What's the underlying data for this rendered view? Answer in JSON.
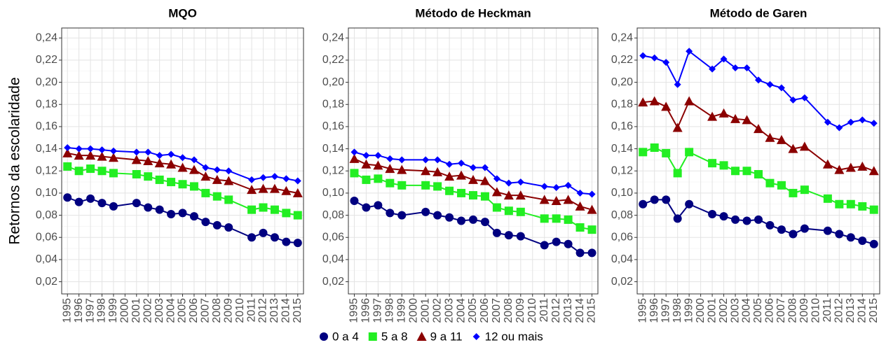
{
  "chart_data": [
    {
      "type": "line",
      "title": "MQO",
      "y_label": "Retornos da escolaridade",
      "x": [
        1995,
        1996,
        1997,
        1998,
        1999,
        2001,
        2002,
        2003,
        2004,
        2005,
        2006,
        2007,
        2008,
        2009,
        2011,
        2012,
        2013,
        2014,
        2015
      ],
      "xlim": [
        1994.5,
        2015.5
      ],
      "xticks": [
        1995,
        1996,
        1997,
        1998,
        1999,
        2000,
        2001,
        2002,
        2003,
        2004,
        2005,
        2006,
        2007,
        2008,
        2009,
        2010,
        2011,
        2012,
        2013,
        2014,
        2015
      ],
      "ylim": [
        0.009,
        0.249
      ],
      "yticks": [
        {
          "value": 0.02,
          "label": "0,02"
        },
        {
          "value": 0.04,
          "label": "0,04"
        },
        {
          "value": 0.06,
          "label": "0,06"
        },
        {
          "value": 0.08,
          "label": "0,08"
        },
        {
          "value": 0.1,
          "label": "0,10"
        },
        {
          "value": 0.12,
          "label": "0,12"
        },
        {
          "value": 0.14,
          "label": "0,14"
        },
        {
          "value": 0.16,
          "label": "0,16"
        },
        {
          "value": 0.18,
          "label": "0,18"
        },
        {
          "value": 0.2,
          "label": "0,20"
        },
        {
          "value": 0.22,
          "label": "0,22"
        },
        {
          "value": 0.24,
          "label": "0,24"
        }
      ],
      "grid": true,
      "series": [
        {
          "name": "0 a 4",
          "color": "#000080",
          "values": [
            0.096,
            0.092,
            0.095,
            0.091,
            0.088,
            0.091,
            0.087,
            0.085,
            0.081,
            0.082,
            0.079,
            0.074,
            0.071,
            0.069,
            0.06,
            0.064,
            0.06,
            0.056,
            0.055
          ]
        },
        {
          "name": "5 a 8",
          "color": "#22ee22",
          "values": [
            0.124,
            0.12,
            0.122,
            0.12,
            0.118,
            0.117,
            0.115,
            0.112,
            0.11,
            0.108,
            0.106,
            0.1,
            0.097,
            0.094,
            0.085,
            0.087,
            0.085,
            0.082,
            0.08
          ]
        },
        {
          "name": "9 a 11",
          "color": "#8b0000",
          "values": [
            0.136,
            0.134,
            0.134,
            0.133,
            0.132,
            0.13,
            0.129,
            0.127,
            0.126,
            0.123,
            0.121,
            0.115,
            0.112,
            0.111,
            0.103,
            0.104,
            0.104,
            0.102,
            0.1
          ]
        },
        {
          "name": "12 ou mais",
          "color": "#0000ff",
          "values": [
            0.141,
            0.14,
            0.14,
            0.139,
            0.138,
            0.137,
            0.137,
            0.134,
            0.135,
            0.132,
            0.13,
            0.123,
            0.121,
            0.12,
            0.112,
            0.114,
            0.115,
            0.113,
            0.111
          ]
        }
      ]
    },
    {
      "type": "line",
      "title": "Método de Heckman",
      "x": [
        1995,
        1996,
        1997,
        1998,
        1999,
        2001,
        2002,
        2003,
        2004,
        2005,
        2006,
        2007,
        2008,
        2009,
        2011,
        2012,
        2013,
        2014,
        2015
      ],
      "xlim": [
        1994.5,
        2015.5
      ],
      "xticks": [
        1995,
        1996,
        1997,
        1998,
        1999,
        2000,
        2001,
        2002,
        2003,
        2004,
        2005,
        2006,
        2007,
        2008,
        2009,
        2010,
        2011,
        2012,
        2013,
        2014,
        2015
      ],
      "ylim": [
        0.009,
        0.249
      ],
      "yticks": [
        {
          "value": 0.02,
          "label": "0,02"
        },
        {
          "value": 0.04,
          "label": "0,04"
        },
        {
          "value": 0.06,
          "label": "0,06"
        },
        {
          "value": 0.08,
          "label": "0,08"
        },
        {
          "value": 0.1,
          "label": "0,10"
        },
        {
          "value": 0.12,
          "label": "0,12"
        },
        {
          "value": 0.14,
          "label": "0,14"
        },
        {
          "value": 0.16,
          "label": "0,16"
        },
        {
          "value": 0.18,
          "label": "0,18"
        },
        {
          "value": 0.2,
          "label": "0,20"
        },
        {
          "value": 0.22,
          "label": "0,22"
        },
        {
          "value": 0.24,
          "label": "0,24"
        }
      ],
      "grid": true,
      "series": [
        {
          "color": "#000080",
          "values": [
            0.093,
            0.087,
            0.089,
            0.082,
            0.08,
            0.083,
            0.08,
            0.078,
            0.075,
            0.076,
            0.074,
            0.064,
            0.062,
            0.061,
            0.053,
            0.056,
            0.054,
            0.046,
            0.046
          ]
        },
        {
          "color": "#22ee22",
          "values": [
            0.118,
            0.112,
            0.113,
            0.109,
            0.107,
            0.107,
            0.106,
            0.102,
            0.1,
            0.098,
            0.097,
            0.087,
            0.084,
            0.083,
            0.077,
            0.077,
            0.076,
            0.069,
            0.067
          ]
        },
        {
          "color": "#8b0000",
          "values": [
            0.131,
            0.126,
            0.125,
            0.122,
            0.121,
            0.12,
            0.119,
            0.115,
            0.116,
            0.112,
            0.111,
            0.101,
            0.098,
            0.098,
            0.094,
            0.093,
            0.094,
            0.088,
            0.085
          ]
        },
        {
          "color": "#0000ff",
          "values": [
            0.137,
            0.134,
            0.134,
            0.131,
            0.13,
            0.13,
            0.13,
            0.126,
            0.127,
            0.123,
            0.123,
            0.113,
            0.109,
            0.11,
            0.106,
            0.105,
            0.107,
            0.1,
            0.099
          ]
        }
      ]
    },
    {
      "type": "line",
      "title": "Método de Garen",
      "x": [
        1995,
        1996,
        1997,
        1998,
        1999,
        2001,
        2002,
        2003,
        2004,
        2005,
        2006,
        2007,
        2008,
        2009,
        2011,
        2012,
        2013,
        2014,
        2015
      ],
      "xlim": [
        1994.5,
        2015.5
      ],
      "xticks": [
        1995,
        1996,
        1997,
        1998,
        1999,
        2000,
        2001,
        2002,
        2003,
        2004,
        2005,
        2006,
        2007,
        2008,
        2009,
        2010,
        2011,
        2012,
        2013,
        2014,
        2015
      ],
      "ylim": [
        0.009,
        0.249
      ],
      "yticks": [
        {
          "value": 0.02,
          "label": "0,02"
        },
        {
          "value": 0.04,
          "label": "0,04"
        },
        {
          "value": 0.06,
          "label": "0,06"
        },
        {
          "value": 0.08,
          "label": "0,08"
        },
        {
          "value": 0.1,
          "label": "0,10"
        },
        {
          "value": 0.12,
          "label": "0,12"
        },
        {
          "value": 0.14,
          "label": "0,14"
        },
        {
          "value": 0.16,
          "label": "0,16"
        },
        {
          "value": 0.18,
          "label": "0,18"
        },
        {
          "value": 0.2,
          "label": "0,20"
        },
        {
          "value": 0.22,
          "label": "0,22"
        },
        {
          "value": 0.24,
          "label": "0,24"
        }
      ],
      "grid": true,
      "series": [
        {
          "color": "#000080",
          "values": [
            0.09,
            0.094,
            0.094,
            0.077,
            0.09,
            0.081,
            0.079,
            0.076,
            0.075,
            0.076,
            0.071,
            0.067,
            0.063,
            0.068,
            0.066,
            0.063,
            0.06,
            0.057,
            0.054
          ]
        },
        {
          "color": "#22ee22",
          "values": [
            0.137,
            0.141,
            0.136,
            0.118,
            0.137,
            0.127,
            0.125,
            0.12,
            0.12,
            0.117,
            0.109,
            0.107,
            0.1,
            0.103,
            0.095,
            0.09,
            0.09,
            0.088,
            0.085
          ]
        },
        {
          "color": "#8b0000",
          "values": [
            0.182,
            0.183,
            0.178,
            0.159,
            0.183,
            0.169,
            0.172,
            0.167,
            0.166,
            0.158,
            0.15,
            0.148,
            0.14,
            0.142,
            0.126,
            0.121,
            0.123,
            0.124,
            0.12
          ]
        },
        {
          "color": "#0000ff",
          "values": [
            0.224,
            0.222,
            0.218,
            0.198,
            0.228,
            0.212,
            0.221,
            0.213,
            0.213,
            0.202,
            0.198,
            0.195,
            0.184,
            0.186,
            0.164,
            0.159,
            0.164,
            0.166,
            0.163
          ]
        }
      ]
    }
  ]
}
